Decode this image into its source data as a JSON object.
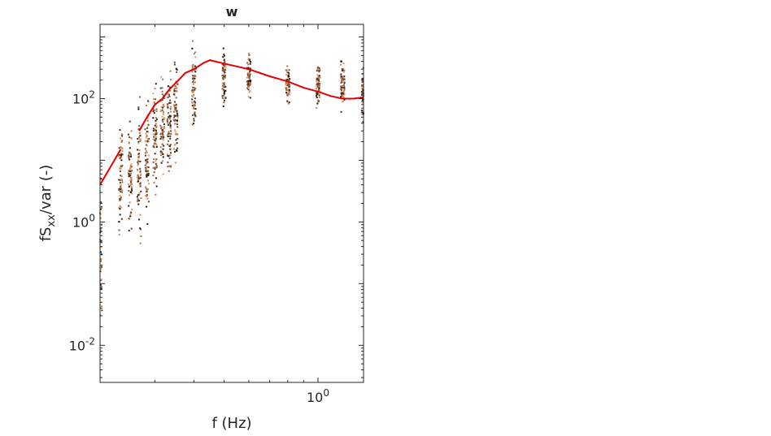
{
  "chart_data": {
    "type": "scatter",
    "title": "w",
    "xlabel": "f (Hz)",
    "ylabel": {
      "main": "fS",
      "subscript": "xx",
      "rest": "/var (-)"
    },
    "xscale": "log",
    "yscale": "log",
    "xlim": [
      0.2,
      1.4
    ],
    "ylim": [
      0.0025,
      1600
    ],
    "x_ticks": [
      {
        "value": 1.0,
        "base": "10",
        "exp": "0"
      }
    ],
    "y_ticks": [
      {
        "value": 0.01,
        "base": "10",
        "exp": "-2"
      },
      {
        "value": 1,
        "base": "10",
        "exp": "0"
      },
      {
        "value": 100,
        "base": "10",
        "exp": "2"
      }
    ],
    "grid": false,
    "legend": "none",
    "colors": {
      "mean_line": "#e60000",
      "scatter_dark": "#1a0d08",
      "scatter_light": "#f2a36b",
      "axis": "#262626"
    },
    "series": [
      {
        "style": "scatter",
        "description_points": "each frequency bin has a vertical column of spectra points",
        "columns": [
          {
            "x": 0.2,
            "ymin": 0.003,
            "ymax": 30
          },
          {
            "x": 0.233,
            "ymin": 0.2,
            "ymax": 160
          },
          {
            "x": 0.25,
            "ymin": 0.3,
            "ymax": 110
          },
          {
            "x": 0.267,
            "ymin": 0.15,
            "ymax": 350
          },
          {
            "x": 0.283,
            "ymin": 0.25,
            "ymax": 450
          },
          {
            "x": 0.3,
            "ymin": 0.8,
            "ymax": 500
          },
          {
            "x": 0.317,
            "ymin": 1.5,
            "ymax": 700
          },
          {
            "x": 0.333,
            "ymin": 2,
            "ymax": 900
          },
          {
            "x": 0.35,
            "ymin": 3,
            "ymax": 1000
          },
          {
            "x": 0.4,
            "ymin": 20,
            "ymax": 1200
          },
          {
            "x": 0.5,
            "ymin": 40,
            "ymax": 1100
          },
          {
            "x": 0.6,
            "ymin": 60,
            "ymax": 900
          },
          {
            "x": 0.8,
            "ymin": 60,
            "ymax": 500
          },
          {
            "x": 1.0,
            "ymin": 50,
            "ymax": 600
          },
          {
            "x": 1.2,
            "ymin": 40,
            "ymax": 700
          },
          {
            "x": 1.4,
            "ymin": 35,
            "ymax": 500
          }
        ]
      },
      {
        "style": "line",
        "color": "#e60000",
        "segments": [
          {
            "x": [
              0.2,
              0.233
            ],
            "y": [
              4,
              15
            ]
          },
          {
            "x": [
              0.267,
              0.283,
              0.3,
              0.317,
              0.333,
              0.35,
              0.375,
              0.4,
              0.43,
              0.45,
              0.5,
              0.6,
              0.7,
              0.8,
              0.9,
              1.0,
              1.1,
              1.2,
              1.3,
              1.4
            ],
            "y": [
              30,
              50,
              80,
              100,
              140,
              180,
              260,
              300,
              380,
              420,
              370,
              300,
              230,
              190,
              150,
              130,
              110,
              100,
              100,
              105
            ]
          }
        ]
      }
    ]
  }
}
